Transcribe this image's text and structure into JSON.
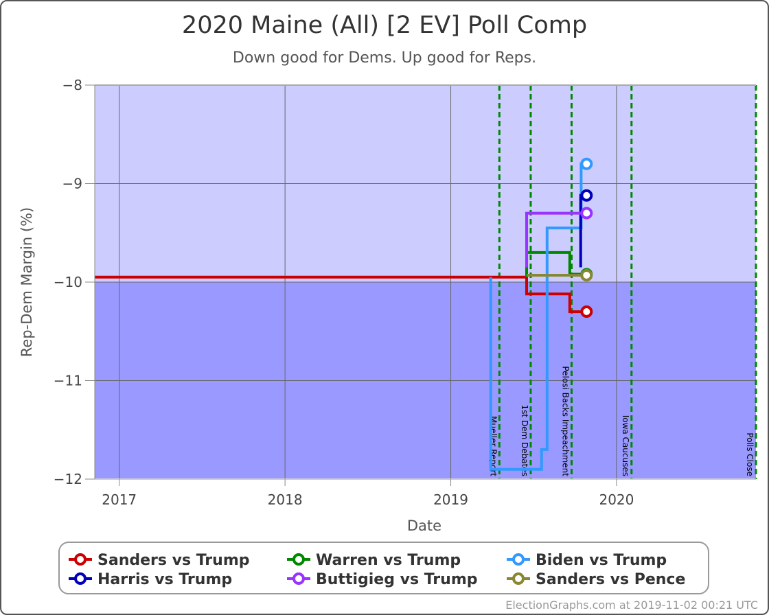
{
  "chart_data": {
    "type": "line",
    "title": "2020 Maine (All) [2 EV] Poll Comp",
    "subtitle": "Down good for Dems. Up good for Reps.",
    "xlabel": "Date",
    "ylabel": "Rep-Dem Margin (%)",
    "xlim": [
      "2016-11-08",
      "2020-11-03"
    ],
    "ylim": [
      -12,
      -8
    ],
    "x_ticks": [
      {
        "date": "2017-01-01",
        "label": "2017"
      },
      {
        "date": "2018-01-01",
        "label": "2018"
      },
      {
        "date": "2019-01-01",
        "label": "2019"
      },
      {
        "date": "2020-01-01",
        "label": "2020"
      }
    ],
    "y_ticks": [
      {
        "value": -8,
        "label": "−8"
      },
      {
        "value": -9,
        "label": "−9"
      },
      {
        "value": -10,
        "label": "−10"
      },
      {
        "value": -11,
        "label": "−11"
      },
      {
        "value": -12,
        "label": "−12"
      }
    ],
    "grid": true,
    "legend_position": "bottom",
    "bands": [
      {
        "from": -10,
        "to": -8,
        "color": "#ccccff"
      },
      {
        "from": -12,
        "to": -10,
        "color": "#9999ff"
      }
    ],
    "events": [
      {
        "date": "2019-04-18",
        "label": "Mueller Report"
      },
      {
        "date": "2019-06-26",
        "label": "1st Dem Debates"
      },
      {
        "date": "2019-09-24",
        "label": "Pelosi Backs Impeachment"
      },
      {
        "date": "2020-02-03",
        "label": "Iowa Caucuses"
      },
      {
        "date": "2020-11-03",
        "label": "Polls Close"
      }
    ],
    "series": [
      {
        "name": "Sanders vs Trump",
        "color": "#cc0000",
        "points": [
          {
            "date": "2016-11-08",
            "value": -9.95
          },
          {
            "date": "2019-06-17",
            "value": -9.95
          },
          {
            "date": "2019-06-17",
            "value": -10.12
          },
          {
            "date": "2019-09-20",
            "value": -10.12
          },
          {
            "date": "2019-09-20",
            "value": -10.3
          },
          {
            "date": "2019-10-27",
            "value": -10.3
          }
        ]
      },
      {
        "name": "Warren vs Trump",
        "color": "#008800",
        "points": [
          {
            "date": "2019-06-17",
            "value": -9.95
          },
          {
            "date": "2019-06-17",
            "value": -9.7
          },
          {
            "date": "2019-09-20",
            "value": -9.7
          },
          {
            "date": "2019-09-20",
            "value": -9.92
          },
          {
            "date": "2019-10-27",
            "value": -9.92
          }
        ]
      },
      {
        "name": "Biden vs Trump",
        "color": "#3399ff",
        "points": [
          {
            "date": "2019-03-30",
            "value": -9.95
          },
          {
            "date": "2019-03-30",
            "value": -11.9
          },
          {
            "date": "2019-07-20",
            "value": -11.9
          },
          {
            "date": "2019-07-20",
            "value": -11.7
          },
          {
            "date": "2019-08-01",
            "value": -11.7
          },
          {
            "date": "2019-08-01",
            "value": -9.45
          },
          {
            "date": "2019-10-15",
            "value": -9.45
          },
          {
            "date": "2019-10-15",
            "value": -8.8
          },
          {
            "date": "2019-10-27",
            "value": -8.8
          }
        ]
      },
      {
        "name": "Harris vs Trump",
        "color": "#0000bb",
        "points": [
          {
            "date": "2019-10-14",
            "value": -9.85
          },
          {
            "date": "2019-10-14",
            "value": -9.12
          },
          {
            "date": "2019-10-27",
            "value": -9.12
          }
        ]
      },
      {
        "name": "Buttigieg vs Trump",
        "color": "#9933ff",
        "points": [
          {
            "date": "2019-06-17",
            "value": -9.85
          },
          {
            "date": "2019-06-17",
            "value": -9.3
          },
          {
            "date": "2019-10-27",
            "value": -9.3
          }
        ]
      },
      {
        "name": "Sanders vs Pence",
        "color": "#888833",
        "points": [
          {
            "date": "2019-06-17",
            "value": -9.93
          },
          {
            "date": "2019-10-27",
            "value": -9.93
          }
        ]
      }
    ],
    "legend_order": [
      0,
      1,
      2,
      3,
      4,
      5
    ],
    "credit": "ElectionGraphs.com at 2019-11-02 00:21 UTC"
  }
}
